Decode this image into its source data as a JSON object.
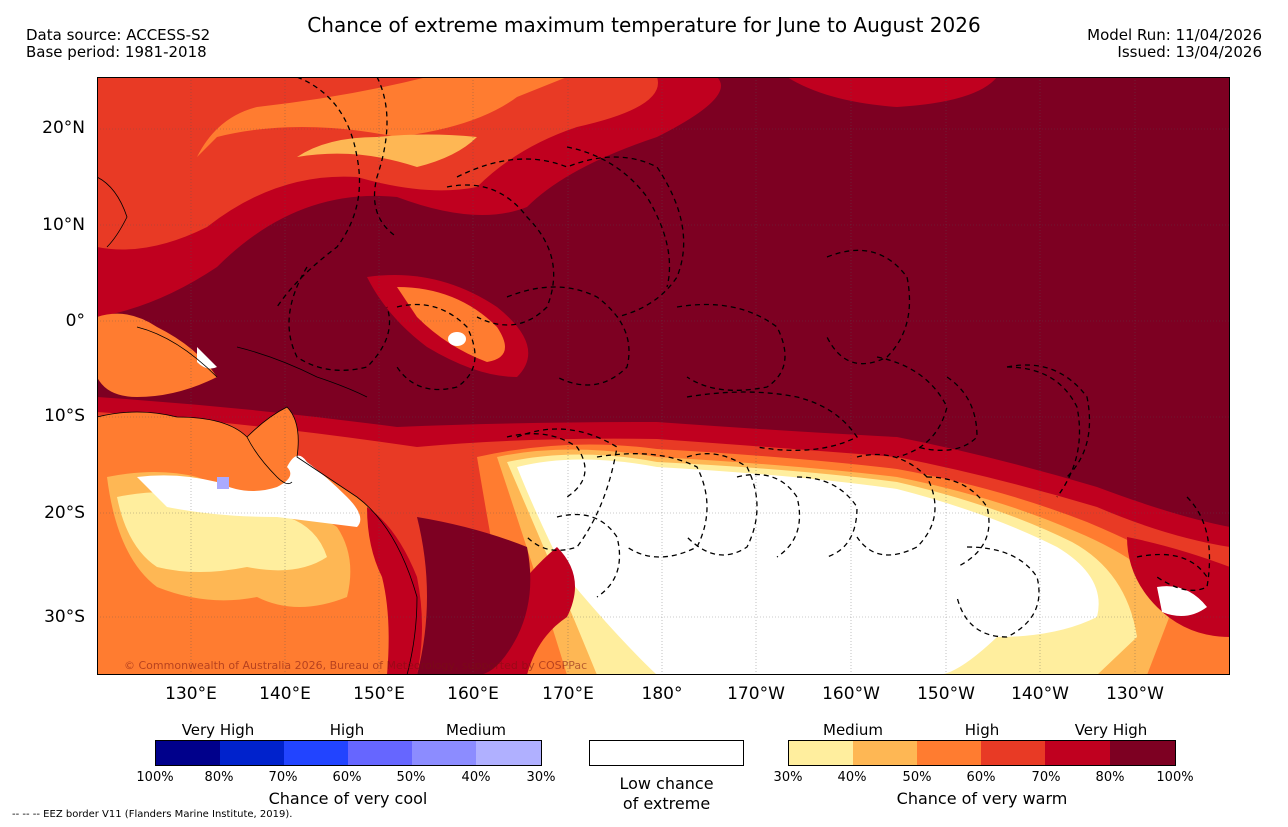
{
  "header": {
    "title": "Chance of extreme maximum temperature for June to August 2026",
    "data_source": "Data source: ACCESS-S2",
    "base_period": "Base period: 1981-2018",
    "model_run": "Model Run: 11/04/2026",
    "issued": "Issued: 13/04/2026"
  },
  "map": {
    "lat_labels": [
      "20°N",
      "10°N",
      "0°",
      "10°S",
      "20°S",
      "30°S"
    ],
    "lon_labels": [
      "130°E",
      "140°E",
      "150°E",
      "160°E",
      "170°E",
      "180°",
      "170°W",
      "160°W",
      "150°W",
      "140°W",
      "130°W"
    ],
    "copyright": "© Commonwealth of Australia 2026, Bureau of Meteorology, supported by COSPPac",
    "colors": {
      "very_warm_100": "#7d0022",
      "warm_80": "#c0001f",
      "warm_70": "#e83a25",
      "warm_60": "#ff7c30",
      "warm_50": "#feb754",
      "warm_40": "#ffee9e",
      "low": "#ffffff",
      "cool_40": "#aaaaff"
    }
  },
  "legend": {
    "cool": {
      "headers": [
        "Very High",
        "High",
        "Medium"
      ],
      "ticks": [
        "100%",
        "80%",
        "70%",
        "60%",
        "50%",
        "40%",
        "30%"
      ],
      "title": "Chance of very cool",
      "colors": [
        "#00008b",
        "#0022cc",
        "#2244ff",
        "#6666ff",
        "#8c8cff",
        "#b0b0ff"
      ]
    },
    "low": {
      "line1": "Low chance",
      "line2": "of extreme"
    },
    "warm": {
      "headers": [
        "Medium",
        "High",
        "Very High"
      ],
      "ticks": [
        "30%",
        "40%",
        "50%",
        "60%",
        "70%",
        "80%",
        "100%"
      ],
      "title": "Chance of very warm",
      "colors": [
        "#ffee9e",
        "#feb754",
        "#ff7c30",
        "#e83a25",
        "#c0001f",
        "#7d0022"
      ]
    }
  },
  "footer": {
    "eez_note": "--  --  -- EEZ border V11 (Flanders Marine Institute, 2019)."
  }
}
